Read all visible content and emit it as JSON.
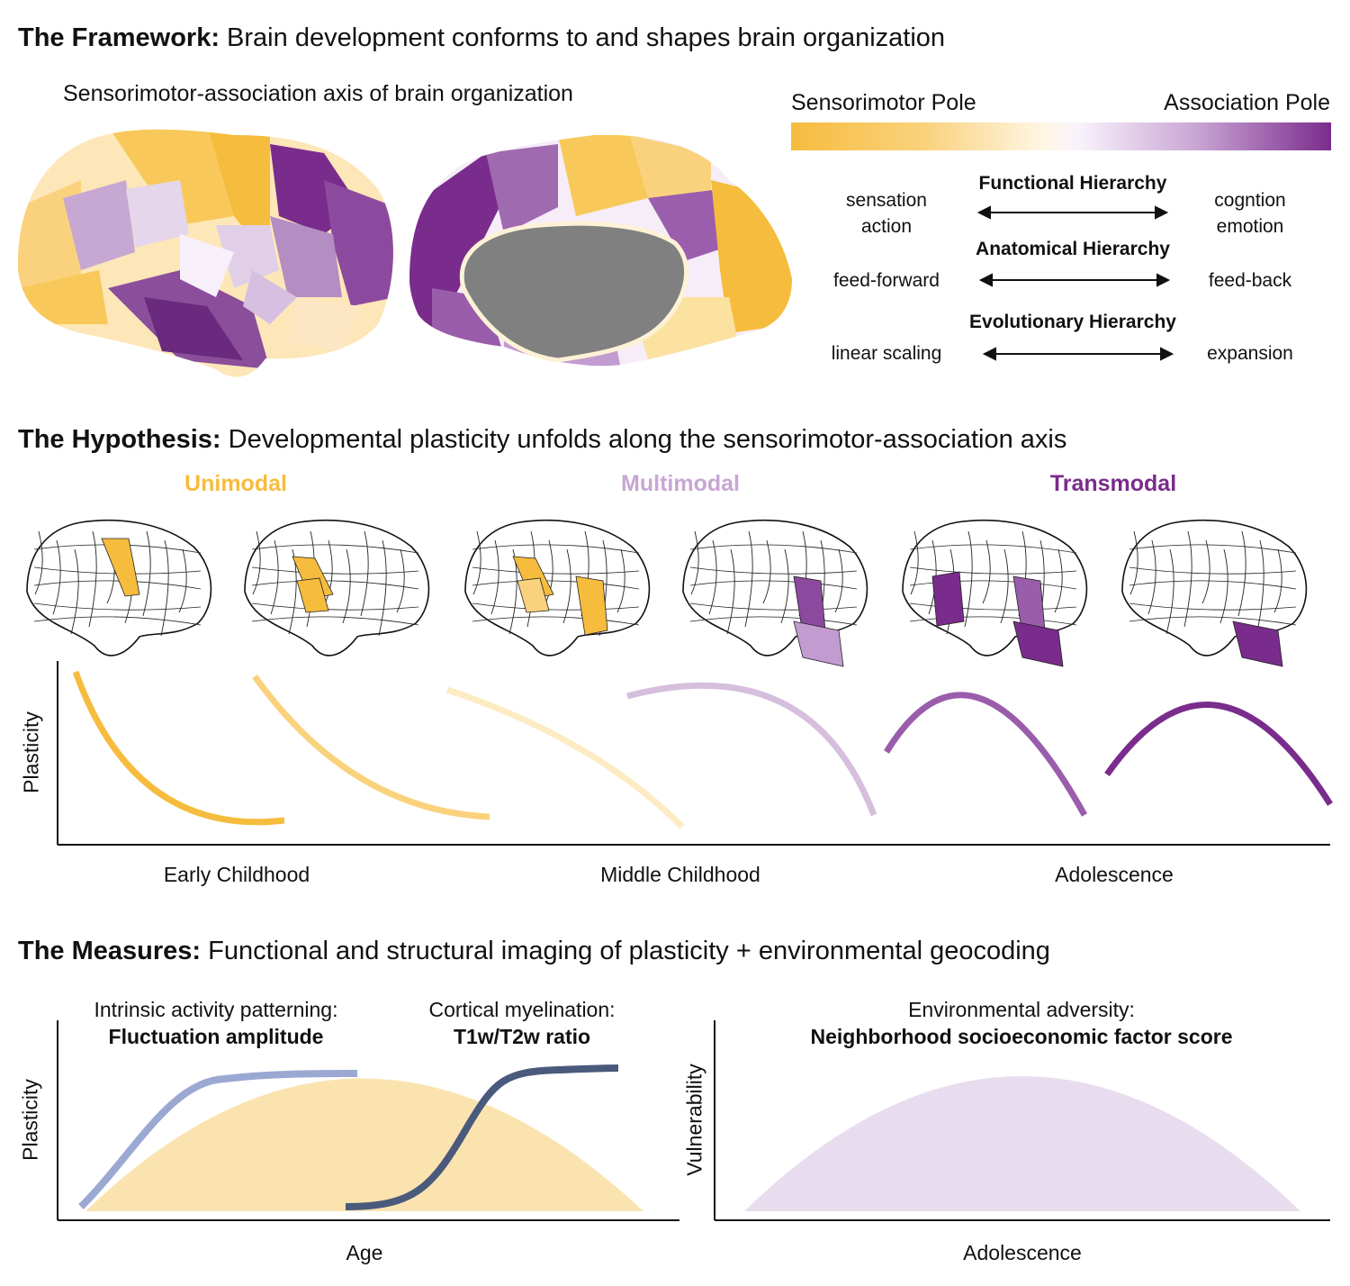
{
  "framework": {
    "bold": "The Framework:",
    "rest": " Brain development conforms to and shapes brain organization",
    "subtitle": "Sensorimotor-association axis of brain organization",
    "pole_left": "Sensorimotor Pole",
    "pole_right": "Association Pole",
    "hierarchies": [
      {
        "name": "Functional Hierarchy",
        "left": [
          "sensation",
          "action"
        ],
        "right": [
          "cogntion",
          "emotion"
        ]
      },
      {
        "name": "Anatomical Hierarchy",
        "left": [
          "feed-forward"
        ],
        "right": [
          "feed-back"
        ]
      },
      {
        "name": "Evolutionary Hierarchy",
        "left": [
          "linear scaling"
        ],
        "right": [
          "expansion"
        ]
      }
    ]
  },
  "hypothesis": {
    "bold": "The Hypothesis:",
    "rest": " Developmental plasticity unfolds along the sensorimotor-association axis",
    "stages": [
      {
        "label": "Unimodal",
        "color": "#F6BC3D"
      },
      {
        "label": "Multimodal",
        "color": "#C8A6D2"
      },
      {
        "label": "Transmodal",
        "color": "#7A2C8C"
      }
    ],
    "y_label": "Plasticity",
    "x_labels": [
      "Early Childhood",
      "Middle Childhood",
      "Adolescence"
    ]
  },
  "measures": {
    "bold": "The Measures:",
    "rest": " Functional and structural imaging of plasticity + environmental geocoding",
    "m1_line1": "Intrinsic activity patterning:",
    "m1_line2": "Fluctuation amplitude",
    "m2_line1": "Cortical myelination:",
    "m2_line2": "T1w/T2w ratio",
    "m3_line1": "Environmental adversity:",
    "m3_line2": "Neighborhood socioeconomic factor score",
    "left_ylabel": "Plasticity",
    "left_xlabel": "Age",
    "right_ylabel": "Vulnerability",
    "right_xlabel": "Adolescence"
  },
  "colors": {
    "sensorimotor": "#F6BC3D",
    "association": "#7A2C8C",
    "fluctuation_line": "#9BA8D2",
    "myelin_line": "#4A5A7C",
    "plasticity_fill": "#FBE3B0",
    "vulnerability_fill": "#E8DDEE",
    "medial_wall": "#808080"
  },
  "icons": [
    "lateral-brain-surface",
    "medial-brain-surface",
    "double-arrow"
  ]
}
